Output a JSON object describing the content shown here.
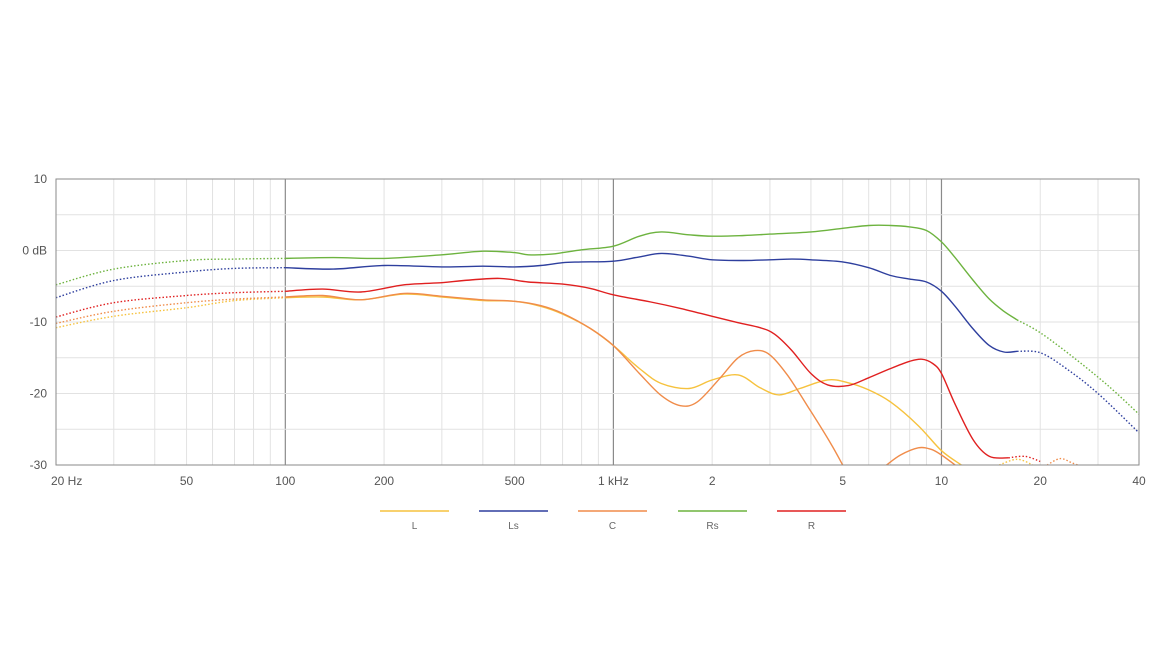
{
  "chart_data": {
    "type": "line",
    "x_scale": "log",
    "xlim": [
      20,
      40000
    ],
    "ylim": [
      -30,
      10
    ],
    "grid": true,
    "legend_position": "bottom",
    "x_ticks": [
      {
        "value": 20,
        "label": "20 Hz"
      },
      {
        "value": 50,
        "label": "50"
      },
      {
        "value": 100,
        "label": "100"
      },
      {
        "value": 200,
        "label": "200"
      },
      {
        "value": 500,
        "label": "500"
      },
      {
        "value": 1000,
        "label": "1 kHz"
      },
      {
        "value": 2000,
        "label": "2"
      },
      {
        "value": 5000,
        "label": "5"
      },
      {
        "value": 10000,
        "label": "10"
      },
      {
        "value": 20000,
        "label": "20"
      },
      {
        "value": 40000,
        "label": "40"
      }
    ],
    "y_ticks": [
      {
        "value": 10,
        "label": "10"
      },
      {
        "value": 0,
        "label": "0 dB"
      },
      {
        "value": -10,
        "label": "-10"
      },
      {
        "value": -20,
        "label": "-20"
      },
      {
        "value": -30,
        "label": "-30"
      }
    ],
    "series": [
      {
        "name": "L",
        "color": "#f6c23e",
        "dotted": [
          [
            20,
            -10.8
          ],
          [
            30,
            -9.2
          ],
          [
            50,
            -8.0
          ],
          [
            70,
            -7.0
          ],
          [
            100,
            -6.6
          ]
        ],
        "solid": [
          [
            100,
            -6.6
          ],
          [
            130,
            -6.5
          ],
          [
            170,
            -6.9
          ],
          [
            230,
            -6.1
          ],
          [
            300,
            -6.5
          ],
          [
            400,
            -7.0
          ],
          [
            500,
            -7.1
          ],
          [
            600,
            -7.8
          ],
          [
            700,
            -8.9
          ],
          [
            850,
            -10.9
          ],
          [
            1000,
            -13.3
          ],
          [
            1200,
            -16.5
          ],
          [
            1400,
            -18.6
          ],
          [
            1700,
            -19.3
          ],
          [
            2000,
            -18.1
          ],
          [
            2400,
            -17.4
          ],
          [
            2800,
            -19.2
          ],
          [
            3200,
            -20.2
          ],
          [
            3700,
            -19.3
          ],
          [
            4500,
            -18.1
          ],
          [
            5200,
            -18.5
          ],
          [
            6000,
            -19.5
          ],
          [
            7000,
            -21.2
          ],
          [
            8500,
            -24.5
          ],
          [
            10000,
            -28.0
          ],
          [
            11500,
            -30.0
          ]
        ],
        "dotted2": [
          [
            15000,
            -30.0
          ],
          [
            17000,
            -29.2
          ],
          [
            19000,
            -30.0
          ]
        ]
      },
      {
        "name": "Ls",
        "color": "#2e3f9e",
        "dotted": [
          [
            20,
            -6.6
          ],
          [
            30,
            -4.2
          ],
          [
            50,
            -3.0
          ],
          [
            70,
            -2.5
          ],
          [
            100,
            -2.4
          ]
        ],
        "solid": [
          [
            100,
            -2.4
          ],
          [
            140,
            -2.6
          ],
          [
            200,
            -2.1
          ],
          [
            300,
            -2.3
          ],
          [
            400,
            -2.2
          ],
          [
            500,
            -2.3
          ],
          [
            600,
            -2.1
          ],
          [
            700,
            -1.7
          ],
          [
            800,
            -1.6
          ],
          [
            1000,
            -1.5
          ],
          [
            1200,
            -0.9
          ],
          [
            1400,
            -0.4
          ],
          [
            1700,
            -0.8
          ],
          [
            2000,
            -1.3
          ],
          [
            2500,
            -1.4
          ],
          [
            3000,
            -1.3
          ],
          [
            3500,
            -1.2
          ],
          [
            4000,
            -1.3
          ],
          [
            5000,
            -1.6
          ],
          [
            6000,
            -2.4
          ],
          [
            7000,
            -3.5
          ],
          [
            8000,
            -4.0
          ],
          [
            9000,
            -4.4
          ],
          [
            10000,
            -5.7
          ],
          [
            11000,
            -7.8
          ],
          [
            12500,
            -11.0
          ],
          [
            14000,
            -13.3
          ],
          [
            15500,
            -14.2
          ],
          [
            17000,
            -14.1
          ]
        ],
        "dotted2": [
          [
            17000,
            -14.1
          ],
          [
            20000,
            -14.3
          ],
          [
            24000,
            -16.5
          ],
          [
            30000,
            -20.0
          ],
          [
            40000,
            -25.5
          ]
        ]
      },
      {
        "name": "C",
        "color": "#f08c4a",
        "dotted": [
          [
            20,
            -10.2
          ],
          [
            30,
            -8.5
          ],
          [
            50,
            -7.3
          ],
          [
            70,
            -6.8
          ],
          [
            100,
            -6.5
          ]
        ],
        "solid": [
          [
            100,
            -6.5
          ],
          [
            130,
            -6.3
          ],
          [
            170,
            -6.9
          ],
          [
            230,
            -6.0
          ],
          [
            300,
            -6.4
          ],
          [
            400,
            -6.9
          ],
          [
            500,
            -7.1
          ],
          [
            600,
            -7.7
          ],
          [
            700,
            -8.8
          ],
          [
            850,
            -10.9
          ],
          [
            1000,
            -13.3
          ],
          [
            1200,
            -17.2
          ],
          [
            1400,
            -20.3
          ],
          [
            1600,
            -21.7
          ],
          [
            1800,
            -21.2
          ],
          [
            2100,
            -18.0
          ],
          [
            2400,
            -15.0
          ],
          [
            2700,
            -14.0
          ],
          [
            3000,
            -14.6
          ],
          [
            3400,
            -17.5
          ],
          [
            4000,
            -22.5
          ],
          [
            4600,
            -27.0
          ],
          [
            5000,
            -30.0
          ]
        ],
        "solid2": [
          [
            6800,
            -30.0
          ],
          [
            7500,
            -28.6
          ],
          [
            8500,
            -27.6
          ],
          [
            9300,
            -27.8
          ],
          [
            10000,
            -28.6
          ],
          [
            11000,
            -30.0
          ]
        ],
        "dotted2": [
          [
            21000,
            -30.0
          ],
          [
            23000,
            -29.1
          ],
          [
            25000,
            -29.7
          ],
          [
            26000,
            -30.0
          ]
        ]
      },
      {
        "name": "Rs",
        "color": "#6db33f",
        "dotted": [
          [
            20,
            -4.8
          ],
          [
            30,
            -2.6
          ],
          [
            50,
            -1.4
          ],
          [
            70,
            -1.2
          ],
          [
            100,
            -1.1
          ]
        ],
        "solid": [
          [
            100,
            -1.1
          ],
          [
            140,
            -1.0
          ],
          [
            200,
            -1.1
          ],
          [
            300,
            -0.6
          ],
          [
            400,
            -0.1
          ],
          [
            500,
            -0.3
          ],
          [
            550,
            -0.6
          ],
          [
            650,
            -0.5
          ],
          [
            800,
            0.1
          ],
          [
            1000,
            0.6
          ],
          [
            1200,
            2.0
          ],
          [
            1400,
            2.6
          ],
          [
            1700,
            2.2
          ],
          [
            2000,
            2.0
          ],
          [
            2500,
            2.1
          ],
          [
            3000,
            2.3
          ],
          [
            4000,
            2.6
          ],
          [
            5000,
            3.1
          ],
          [
            6000,
            3.5
          ],
          [
            7000,
            3.5
          ],
          [
            8000,
            3.3
          ],
          [
            9000,
            2.8
          ],
          [
            10000,
            1.2
          ],
          [
            11000,
            -1.0
          ],
          [
            12500,
            -4.2
          ],
          [
            14000,
            -6.8
          ],
          [
            15500,
            -8.5
          ],
          [
            17000,
            -9.7
          ]
        ],
        "dotted2": [
          [
            17000,
            -9.7
          ],
          [
            20000,
            -11.5
          ],
          [
            25000,
            -14.8
          ],
          [
            32000,
            -18.8
          ],
          [
            40000,
            -22.9
          ]
        ]
      },
      {
        "name": "R",
        "color": "#e02020",
        "dotted": [
          [
            20,
            -9.3
          ],
          [
            30,
            -7.3
          ],
          [
            50,
            -6.3
          ],
          [
            70,
            -5.9
          ],
          [
            100,
            -5.7
          ]
        ],
        "solid": [
          [
            100,
            -5.7
          ],
          [
            130,
            -5.4
          ],
          [
            170,
            -5.8
          ],
          [
            230,
            -4.8
          ],
          [
            300,
            -4.5
          ],
          [
            350,
            -4.2
          ],
          [
            450,
            -3.9
          ],
          [
            550,
            -4.4
          ],
          [
            700,
            -4.7
          ],
          [
            850,
            -5.3
          ],
          [
            1000,
            -6.2
          ],
          [
            1300,
            -7.2
          ],
          [
            1600,
            -8.1
          ],
          [
            2000,
            -9.2
          ],
          [
            2400,
            -10.1
          ],
          [
            2800,
            -10.8
          ],
          [
            3100,
            -11.7
          ],
          [
            3500,
            -14.0
          ],
          [
            4000,
            -17.2
          ],
          [
            4500,
            -18.8
          ],
          [
            5200,
            -18.9
          ],
          [
            6000,
            -17.8
          ],
          [
            7000,
            -16.5
          ],
          [
            8000,
            -15.5
          ],
          [
            8700,
            -15.2
          ],
          [
            9400,
            -15.8
          ],
          [
            10000,
            -17.2
          ],
          [
            11000,
            -21.5
          ],
          [
            12500,
            -26.5
          ],
          [
            14000,
            -28.8
          ],
          [
            16000,
            -29.0
          ]
        ],
        "dotted2": [
          [
            16000,
            -29.0
          ],
          [
            18000,
            -28.8
          ],
          [
            20000,
            -29.5
          ]
        ]
      }
    ],
    "legend": [
      {
        "name": "L",
        "color": "#f6c23e"
      },
      {
        "name": "Ls",
        "color": "#2e3f9e"
      },
      {
        "name": "C",
        "color": "#f08c4a"
      },
      {
        "name": "Rs",
        "color": "#6db33f"
      },
      {
        "name": "R",
        "color": "#e02020"
      }
    ]
  }
}
